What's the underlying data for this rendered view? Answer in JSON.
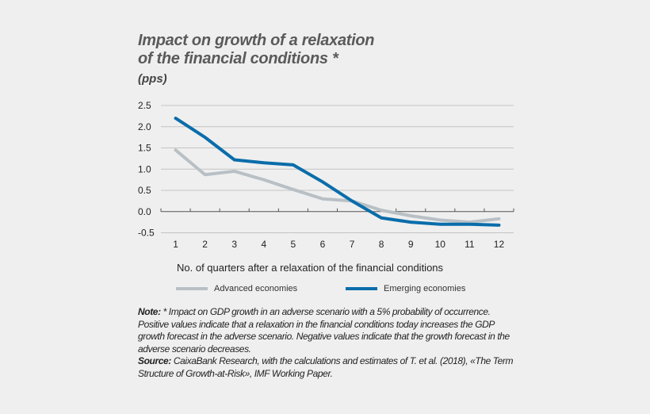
{
  "chart_data": {
    "type": "line",
    "title_line1": "Impact on growth of a relaxation",
    "title_line2": "of the financial conditions *",
    "unit": "(pps)",
    "xlabel": "No. of quarters after a relaxation of the financial conditions",
    "ylabel": "",
    "categories": [
      "1",
      "2",
      "3",
      "4",
      "5",
      "6",
      "7",
      "8",
      "9",
      "10",
      "11",
      "12"
    ],
    "y_ticks": [
      "2.5",
      "2.0",
      "1.5",
      "1.0",
      "0.5",
      "0.0",
      "-0.5"
    ],
    "ylim": [
      -0.5,
      2.5
    ],
    "grid": true,
    "legend_position": "bottom",
    "series": [
      {
        "name": "Advanced economies",
        "color": "#b9c0c5",
        "values": [
          1.45,
          0.87,
          0.95,
          0.75,
          0.52,
          0.3,
          0.25,
          0.03,
          -0.1,
          -0.2,
          -0.25,
          -0.17
        ]
      },
      {
        "name": "Emerging economies",
        "color": "#0a6daa",
        "values": [
          2.2,
          1.75,
          1.22,
          1.15,
          1.1,
          0.7,
          0.25,
          -0.15,
          -0.25,
          -0.3,
          -0.3,
          -0.32
        ]
      }
    ]
  },
  "note": {
    "note_label": "Note:",
    "note_text": " * Impact on GDP growth in an adverse scenario with a 5% probability of occurrence. Positive values indicate that a relaxation in the financial conditions today increases the GDP growth forecast in the adverse scenario. Negative values indicate that the growth forecast in the adverse scenario decreases.",
    "source_label": "Source:",
    "source_text": " CaixaBank Research, with the calculations and estimates of T. et al. (2018), «The Term Structure of Growth-at-Risk», IMF Working Paper."
  }
}
